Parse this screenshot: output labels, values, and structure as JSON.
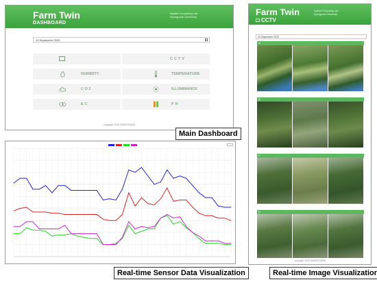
{
  "dashboard": {
    "brand": "Farm Twin",
    "subtitle": "DASHBOARD",
    "org_line1": "Spatial Computing Lab",
    "org_line2": "Kyungpook University",
    "date_value": "24 September 2023",
    "tiles": [
      {
        "label": "",
        "icon": "monitor-icon",
        "glyph": "▭"
      },
      {
        "label": "CCTV",
        "icon": "",
        "glyph": ""
      },
      {
        "label": "HUMIDITY",
        "icon": "droplet-icon",
        "glyph": "💧"
      },
      {
        "label": "TEMPERATURE",
        "icon": "thermometer-icon",
        "glyph": "🌡"
      },
      {
        "label": "CO2",
        "icon": "cloud-icon",
        "glyph": "☁"
      },
      {
        "label": "ILLUMINANCE",
        "icon": "sun-icon",
        "glyph": "✺"
      },
      {
        "label": "EC",
        "icon": "ec-icon",
        "glyph": "◎"
      },
      {
        "label": "PH",
        "icon": "ph-icon",
        "glyph": "▮▮"
      }
    ],
    "footer": "copyright 2023 SMARTFARM",
    "caption": "Main Dashboard",
    "accent": "#4caf50"
  },
  "cctv": {
    "brand": "Farm Twin",
    "subtitle": "CCTV",
    "org_line1": "Spatial Computing Lab",
    "org_line2": "Kyungpook University",
    "date_value": "24 September 2023",
    "sections": [
      "A",
      "B",
      "C",
      "D"
    ],
    "footer": "copyright 2023 SMARTFARM",
    "caption": "Real-time Image Visualization"
  },
  "chart_caption": "Real-time Sensor Data Visualization",
  "chart_data": {
    "type": "line",
    "ylim": [
      5,
      95
    ],
    "series": [
      {
        "color": "#2222dd",
        "values": [
          66,
          70,
          70,
          61,
          61,
          64,
          58,
          64,
          64,
          60,
          60,
          60,
          60,
          60,
          52,
          53,
          52,
          61,
          77,
          75,
          79,
          72,
          65,
          67,
          77,
          70,
          72,
          70,
          64,
          58,
          54,
          54,
          47,
          46,
          46
        ]
      },
      {
        "color": "#dd2222",
        "values": [
          43,
          45,
          46,
          42,
          42,
          42,
          41,
          41,
          40,
          40,
          40,
          40,
          40,
          40,
          36,
          35,
          35,
          40,
          58,
          47,
          54,
          49,
          48,
          53,
          62,
          51,
          52,
          52,
          46,
          41,
          39,
          39,
          37,
          37,
          35
        ]
      },
      {
        "color": "#22dd22",
        "values": [
          24,
          24,
          29,
          27,
          27,
          26,
          22,
          23,
          23,
          24,
          22,
          21,
          20,
          20,
          15,
          15,
          16,
          20,
          31,
          24,
          26,
          28,
          28,
          37,
          39,
          32,
          34,
          29,
          25,
          20,
          16,
          16,
          16,
          15,
          15
        ]
      },
      {
        "color": "#cc22cc",
        "values": [
          30,
          30,
          34,
          34,
          28,
          28,
          28,
          28,
          31,
          24,
          24,
          24,
          24,
          24,
          15,
          15,
          15,
          21,
          34,
          28,
          30,
          29,
          30,
          37,
          40,
          37,
          38,
          30,
          25,
          22,
          18,
          18,
          18,
          16,
          16
        ]
      }
    ],
    "grid": true
  }
}
